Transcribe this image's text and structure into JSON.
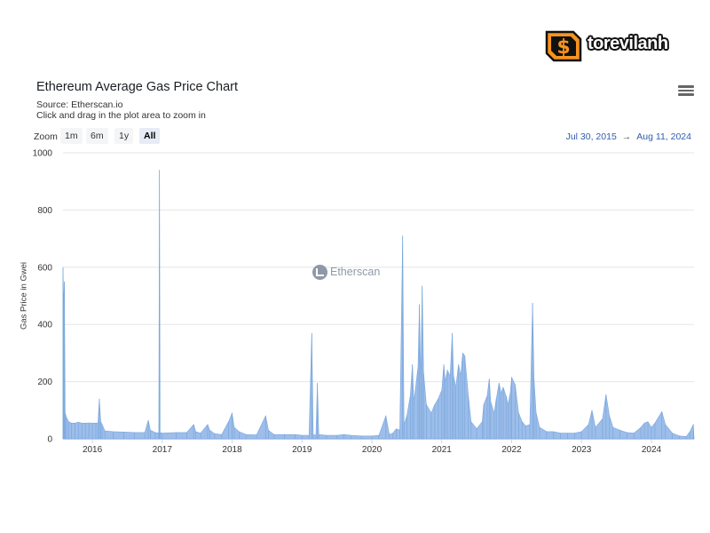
{
  "brand": {
    "name": "torevilanh",
    "icon": "dollar-shield-logo",
    "color": "#f7941d"
  },
  "header": {
    "title": "Ethereum Average Gas Price Chart",
    "subtitle": "Source: Etherscan.io",
    "hint": "Click and drag in the plot area to zoom in",
    "menu_icon": "hamburger-menu-icon"
  },
  "zoom": {
    "label": "Zoom",
    "buttons": [
      "1m",
      "6m",
      "1y",
      "All"
    ],
    "active": "All"
  },
  "range": {
    "start": "Jul 30, 2015",
    "arrow": "→",
    "end": "Aug 11, 2024"
  },
  "watermark": {
    "text": "Etherscan"
  },
  "colors": {
    "series": "#8cb3e6",
    "grid": "#e6e6e6",
    "axis_text": "#333333",
    "range_text": "#335cad"
  },
  "chart_data": {
    "type": "area",
    "title": "Ethereum Average Gas Price Chart",
    "subtitle": "Source: Etherscan.io",
    "xlabel": "",
    "ylabel": "Gas Price in Gwei",
    "ylim": [
      0,
      1000
    ],
    "yticks": [
      0,
      200,
      400,
      600,
      800,
      1000
    ],
    "xlim": [
      2015.58,
      2024.61
    ],
    "xticks": [
      "2016",
      "2017",
      "2018",
      "2019",
      "2020",
      "2021",
      "2022",
      "2023",
      "2024"
    ],
    "grid": true,
    "legend": "none",
    "series": [
      {
        "points": [
          [
            2015.58,
            600
          ],
          [
            2015.59,
            470
          ],
          [
            2015.6,
            550
          ],
          [
            2015.61,
            90
          ],
          [
            2015.63,
            75
          ],
          [
            2015.66,
            60
          ],
          [
            2015.7,
            55
          ],
          [
            2015.75,
            55
          ],
          [
            2015.8,
            58
          ],
          [
            2015.85,
            55
          ],
          [
            2015.9,
            55
          ],
          [
            2015.95,
            56
          ],
          [
            2016.0,
            55
          ],
          [
            2016.05,
            55
          ],
          [
            2016.08,
            56
          ],
          [
            2016.1,
            140
          ],
          [
            2016.12,
            60
          ],
          [
            2016.14,
            50
          ],
          [
            2016.18,
            28
          ],
          [
            2016.3,
            25
          ],
          [
            2016.45,
            24
          ],
          [
            2016.6,
            22
          ],
          [
            2016.75,
            22
          ],
          [
            2016.8,
            65
          ],
          [
            2016.83,
            30
          ],
          [
            2016.9,
            22
          ],
          [
            2016.95,
            20
          ],
          [
            2016.96,
            940
          ],
          [
            2016.97,
            22
          ],
          [
            2017.0,
            20
          ],
          [
            2017.2,
            22
          ],
          [
            2017.35,
            22
          ],
          [
            2017.45,
            50
          ],
          [
            2017.48,
            25
          ],
          [
            2017.55,
            20
          ],
          [
            2017.65,
            50
          ],
          [
            2017.68,
            30
          ],
          [
            2017.75,
            18
          ],
          [
            2017.85,
            15
          ],
          [
            2017.95,
            60
          ],
          [
            2018.0,
            90
          ],
          [
            2018.03,
            40
          ],
          [
            2018.1,
            25
          ],
          [
            2018.2,
            15
          ],
          [
            2018.35,
            14
          ],
          [
            2018.48,
            80
          ],
          [
            2018.52,
            30
          ],
          [
            2018.6,
            15
          ],
          [
            2018.75,
            15
          ],
          [
            2018.9,
            15
          ],
          [
            2019.0,
            12
          ],
          [
            2019.1,
            12
          ],
          [
            2019.14,
            370
          ],
          [
            2019.16,
            15
          ],
          [
            2019.2,
            12
          ],
          [
            2019.22,
            195
          ],
          [
            2019.24,
            15
          ],
          [
            2019.35,
            12
          ],
          [
            2019.5,
            12
          ],
          [
            2019.6,
            15
          ],
          [
            2019.7,
            12
          ],
          [
            2019.85,
            10
          ],
          [
            2020.0,
            10
          ],
          [
            2020.1,
            12
          ],
          [
            2020.2,
            80
          ],
          [
            2020.25,
            15
          ],
          [
            2020.3,
            20
          ],
          [
            2020.35,
            35
          ],
          [
            2020.4,
            30
          ],
          [
            2020.44,
            710
          ],
          [
            2020.46,
            50
          ],
          [
            2020.5,
            80
          ],
          [
            2020.55,
            150
          ],
          [
            2020.58,
            260
          ],
          [
            2020.6,
            130
          ],
          [
            2020.66,
            250
          ],
          [
            2020.68,
            470
          ],
          [
            2020.7,
            200
          ],
          [
            2020.72,
            535
          ],
          [
            2020.74,
            230
          ],
          [
            2020.78,
            120
          ],
          [
            2020.85,
            90
          ],
          [
            2020.9,
            120
          ],
          [
            2020.95,
            140
          ],
          [
            2021.0,
            170
          ],
          [
            2021.03,
            260
          ],
          [
            2021.05,
            200
          ],
          [
            2021.08,
            240
          ],
          [
            2021.12,
            220
          ],
          [
            2021.15,
            370
          ],
          [
            2021.17,
            220
          ],
          [
            2021.2,
            180
          ],
          [
            2021.24,
            260
          ],
          [
            2021.27,
            220
          ],
          [
            2021.3,
            300
          ],
          [
            2021.33,
            290
          ],
          [
            2021.38,
            150
          ],
          [
            2021.42,
            60
          ],
          [
            2021.5,
            35
          ],
          [
            2021.58,
            60
          ],
          [
            2021.6,
            120
          ],
          [
            2021.65,
            150
          ],
          [
            2021.68,
            210
          ],
          [
            2021.7,
            130
          ],
          [
            2021.75,
            90
          ],
          [
            2021.78,
            140
          ],
          [
            2021.82,
            195
          ],
          [
            2021.85,
            160
          ],
          [
            2021.88,
            180
          ],
          [
            2021.92,
            150
          ],
          [
            2021.95,
            120
          ],
          [
            2021.98,
            160
          ],
          [
            2022.0,
            215
          ],
          [
            2022.05,
            190
          ],
          [
            2022.1,
            90
          ],
          [
            2022.15,
            60
          ],
          [
            2022.2,
            45
          ],
          [
            2022.26,
            50
          ],
          [
            2022.3,
            475
          ],
          [
            2022.32,
            210
          ],
          [
            2022.35,
            90
          ],
          [
            2022.4,
            40
          ],
          [
            2022.5,
            25
          ],
          [
            2022.6,
            25
          ],
          [
            2022.7,
            20
          ],
          [
            2022.8,
            20
          ],
          [
            2022.9,
            20
          ],
          [
            2023.0,
            25
          ],
          [
            2023.1,
            50
          ],
          [
            2023.15,
            100
          ],
          [
            2023.2,
            40
          ],
          [
            2023.3,
            70
          ],
          [
            2023.35,
            155
          ],
          [
            2023.4,
            80
          ],
          [
            2023.45,
            40
          ],
          [
            2023.55,
            30
          ],
          [
            2023.65,
            22
          ],
          [
            2023.75,
            20
          ],
          [
            2023.85,
            40
          ],
          [
            2023.9,
            55
          ],
          [
            2023.95,
            60
          ],
          [
            2024.0,
            40
          ],
          [
            2024.05,
            55
          ],
          [
            2024.15,
            95
          ],
          [
            2024.2,
            50
          ],
          [
            2024.3,
            20
          ],
          [
            2024.4,
            10
          ],
          [
            2024.5,
            8
          ],
          [
            2024.55,
            25
          ],
          [
            2024.6,
            50
          ],
          [
            2024.61,
            3
          ]
        ]
      }
    ]
  }
}
